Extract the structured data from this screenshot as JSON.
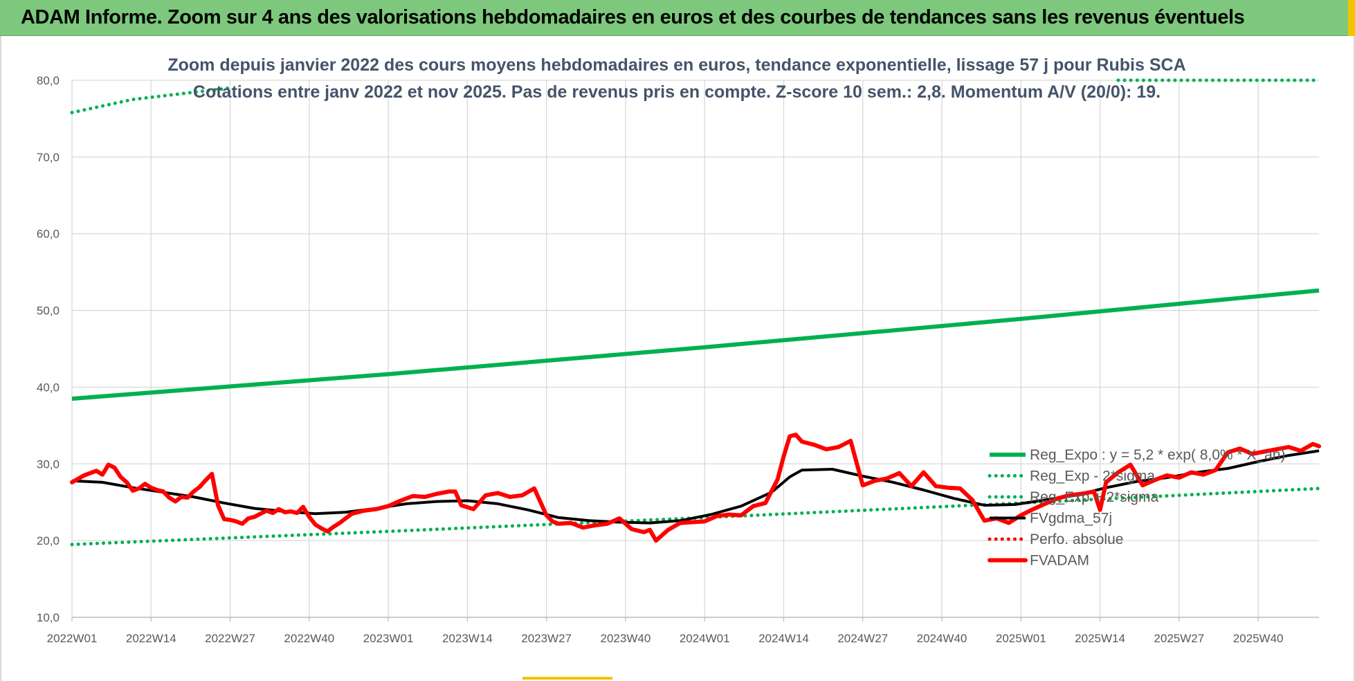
{
  "banner": {
    "title": "ADAM Informe. Zoom sur 4 ans des valorisations hebdomadaires en euros et des courbes de tendances sans les revenus éventuels"
  },
  "colors": {
    "banner_bg": "#7dc87d",
    "trend_green": "#00b050",
    "price_red": "#ff0000",
    "smooth_black": "#000000",
    "grid": "#d9d9d9"
  },
  "chart_data": {
    "type": "line",
    "title": "Zoom depuis janvier 2022 des cours moyens hebdomadaires en euros, tendance exponentielle, lissage 57 j pour Rubis SCA",
    "subtitle": "Cotations entre janv 2022 et nov 2025. Pas de revenus pris en compte. Z-score 10 sem.: 2,8. Momentum A/V (20/0): 19.",
    "xlabel": "",
    "ylabel": "",
    "ylim": [
      10,
      80
    ],
    "y_ticks": [
      "10,0",
      "20,0",
      "30,0",
      "40,0",
      "50,0",
      "60,0",
      "70,0",
      "80,0"
    ],
    "x_ticks": [
      "2022W01",
      "2022W14",
      "2022W27",
      "2022W40",
      "2023W01",
      "2023W14",
      "2023W27",
      "2023W40",
      "2024W01",
      "2024W14",
      "2024W27",
      "2024W40",
      "2025W01",
      "2025W14",
      "2025W27",
      "2025W40"
    ],
    "x_tick_weeks": [
      0,
      13,
      26,
      39,
      52,
      65,
      78,
      91,
      104,
      117,
      130,
      143,
      156,
      169,
      182,
      195
    ],
    "n_weeks": 206,
    "grid": true,
    "legend_position": "bottom-right",
    "series": [
      {
        "name": "Reg_Expo : y = 5,2 * exp( 8,0% * X_an)",
        "style": "solid",
        "color": "#00b050",
        "weeks": [
          0,
          52,
          104,
          156,
          205
        ],
        "values": [
          38.5,
          41.7,
          45.2,
          48.9,
          52.6
        ]
      },
      {
        "name": "Reg_Exp - 2*sigma",
        "style": "dotted",
        "color": "#00b050",
        "weeks": [
          0,
          52,
          104,
          156,
          205
        ],
        "values": [
          19.5,
          21.2,
          23.0,
          24.9,
          26.8
        ]
      },
      {
        "name": "Reg_Exp + 2*sigma",
        "style": "dotted",
        "color": "#00b050",
        "weeks": [
          0,
          10,
          26
        ],
        "values": [
          75.8,
          77.5,
          79.0
        ],
        "clipped_above": 80,
        "right_segment_weeks": [
          172,
          205
        ],
        "right_segment_values": [
          80,
          80
        ]
      },
      {
        "name": "FVgdma_57j",
        "style": "solid",
        "color": "#000000",
        "weeks": [
          0,
          5,
          10,
          15,
          20,
          25,
          30,
          35,
          40,
          45,
          50,
          55,
          60,
          65,
          70,
          75,
          80,
          85,
          90,
          95,
          100,
          105,
          110,
          115,
          118,
          120,
          125,
          130,
          135,
          140,
          145,
          150,
          155,
          160,
          165,
          170,
          175,
          180,
          185,
          190,
          195,
          200,
          205
        ],
        "values": [
          27.8,
          27.6,
          26.9,
          26.3,
          25.7,
          24.9,
          24.2,
          23.8,
          23.5,
          23.7,
          24.2,
          24.8,
          25.1,
          25.2,
          24.8,
          24.0,
          23.0,
          22.6,
          22.4,
          22.3,
          22.6,
          23.4,
          24.5,
          26.3,
          28.3,
          29.2,
          29.3,
          28.4,
          27.6,
          26.6,
          25.5,
          24.6,
          24.7,
          25.3,
          25.9,
          26.9,
          27.7,
          28.2,
          28.9,
          29.4,
          30.3,
          31.1,
          31.7
        ]
      },
      {
        "name": "Perfo. absolue",
        "style": "dotted",
        "color": "#ff0000",
        "weeks": [],
        "values": []
      },
      {
        "name": "FVADAM",
        "style": "solid",
        "color": "#ff0000",
        "weeks": [
          0,
          2,
          4,
          5,
          6,
          7,
          8,
          9,
          10,
          11,
          12,
          13,
          14,
          15,
          16,
          17,
          18,
          19,
          20,
          21,
          22,
          23,
          24,
          25,
          26,
          27,
          28,
          29,
          30,
          31,
          32,
          33,
          34,
          35,
          36,
          37,
          38,
          39,
          40,
          41,
          42,
          43,
          44,
          46,
          48,
          50,
          52,
          54,
          56,
          58,
          60,
          62,
          63,
          64,
          66,
          68,
          70,
          72,
          74,
          76,
          78,
          79,
          80,
          82,
          84,
          86,
          88,
          90,
          92,
          94,
          95,
          96,
          98,
          100,
          102,
          104,
          106,
          108,
          110,
          112,
          114,
          116,
          117,
          118,
          119,
          120,
          122,
          124,
          126,
          127,
          128,
          130,
          132,
          134,
          136,
          138,
          140,
          142,
          144,
          146,
          148,
          150,
          152,
          154,
          156,
          158,
          160,
          162,
          164,
          166,
          168,
          169,
          170,
          172,
          174,
          176,
          178,
          180,
          182,
          184,
          186,
          188,
          190,
          192,
          194,
          196,
          198,
          200,
          202,
          204,
          205
        ],
        "values": [
          27.6,
          28.5,
          29.1,
          28.6,
          29.9,
          29.5,
          28.3,
          27.6,
          26.5,
          26.8,
          27.4,
          26.9,
          26.6,
          26.4,
          25.6,
          25.1,
          25.7,
          25.6,
          26.4,
          27.0,
          27.9,
          28.7,
          24.6,
          22.8,
          22.7,
          22.5,
          22.2,
          22.9,
          23.1,
          23.5,
          23.9,
          23.6,
          24.1,
          23.7,
          23.8,
          23.6,
          24.4,
          23.1,
          22.1,
          21.6,
          21.2,
          21.8,
          22.3,
          23.5,
          23.9,
          24.1,
          24.5,
          25.2,
          25.8,
          25.7,
          26.1,
          26.4,
          26.4,
          24.6,
          24.1,
          25.9,
          26.2,
          25.7,
          25.9,
          26.8,
          23.3,
          22.5,
          22.2,
          22.3,
          21.7,
          22.0,
          22.2,
          22.9,
          21.5,
          21.1,
          21.4,
          20.0,
          21.4,
          22.3,
          22.4,
          22.5,
          23.2,
          23.4,
          23.3,
          24.5,
          24.9,
          28.0,
          31.0,
          33.6,
          33.8,
          32.9,
          32.5,
          31.9,
          32.2,
          32.6,
          33.0,
          27.2,
          27.8,
          28.1,
          28.8,
          27.1,
          28.9,
          27.1,
          26.9,
          26.8,
          25.3,
          22.6,
          22.9,
          22.3,
          23.3,
          24.1,
          24.8,
          25.5,
          25.9,
          26.1,
          26.4,
          24.0,
          27.6,
          28.9,
          29.9,
          27.2,
          27.9,
          28.5,
          28.2,
          28.9,
          28.6,
          29.2,
          31.5,
          32.0,
          31.3,
          31.6,
          31.9,
          32.2,
          31.7,
          32.6,
          32.3
        ],
        "segments_break_after_week": null
      }
    ]
  }
}
